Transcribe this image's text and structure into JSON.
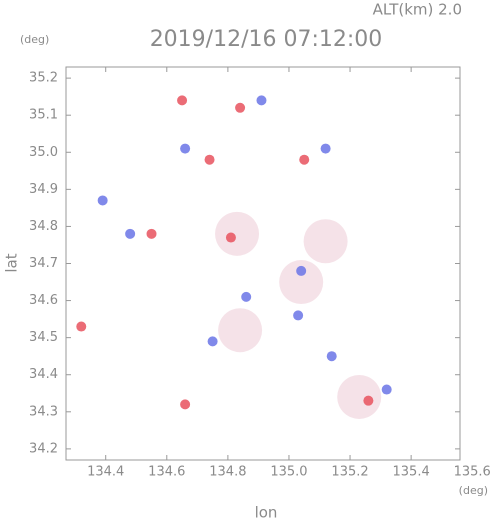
{
  "chart_data": {
    "type": "scatter",
    "title": "2019/12/16 07:12:00",
    "subtitle": "ALT(km)  2.0",
    "y_unit": "(deg)",
    "x_unit": "(deg)",
    "x_label": "lon",
    "y_label": "lat",
    "xlim": [
      134.27,
      135.56
    ],
    "ylim": [
      34.17,
      35.23
    ],
    "xticks": [
      134.4,
      134.6,
      134.8,
      {
        "value": 135,
        "label": "135.0"
      },
      135.2,
      135.4,
      135.6
    ],
    "yticks": [
      34.2,
      34.3,
      34.4,
      34.5,
      34.6,
      34.7,
      34.8,
      34.9,
      {
        "value": 35,
        "label": "35.0"
      },
      35.1,
      35.2
    ],
    "series": [
      {
        "color": "#f3dde4",
        "x": [
          134.83,
          134.84,
          135.23,
          135.04,
          135.12
        ],
        "values": [
          34.78,
          34.52,
          34.34,
          34.65,
          34.76
        ]
      },
      {
        "color": "#e8525e",
        "x": [
          134.84,
          134.81,
          134.55,
          134.74,
          134.66,
          134.32,
          135.26,
          135.05,
          134.65
        ],
        "values": [
          35.12,
          34.77,
          34.78,
          34.98,
          34.32,
          34.53,
          34.33,
          34.98,
          35.14
        ]
      },
      {
        "color": "#6a74e6",
        "x": [
          134.91,
          134.39,
          135.04,
          135.03,
          135.32,
          134.66,
          135.14,
          134.75,
          134.86,
          135.12,
          134.48
        ],
        "values": [
          35.14,
          34.87,
          34.68,
          34.56,
          34.36,
          35.01,
          34.45,
          34.49,
          34.61,
          35.01,
          34.78
        ]
      }
    ]
  }
}
